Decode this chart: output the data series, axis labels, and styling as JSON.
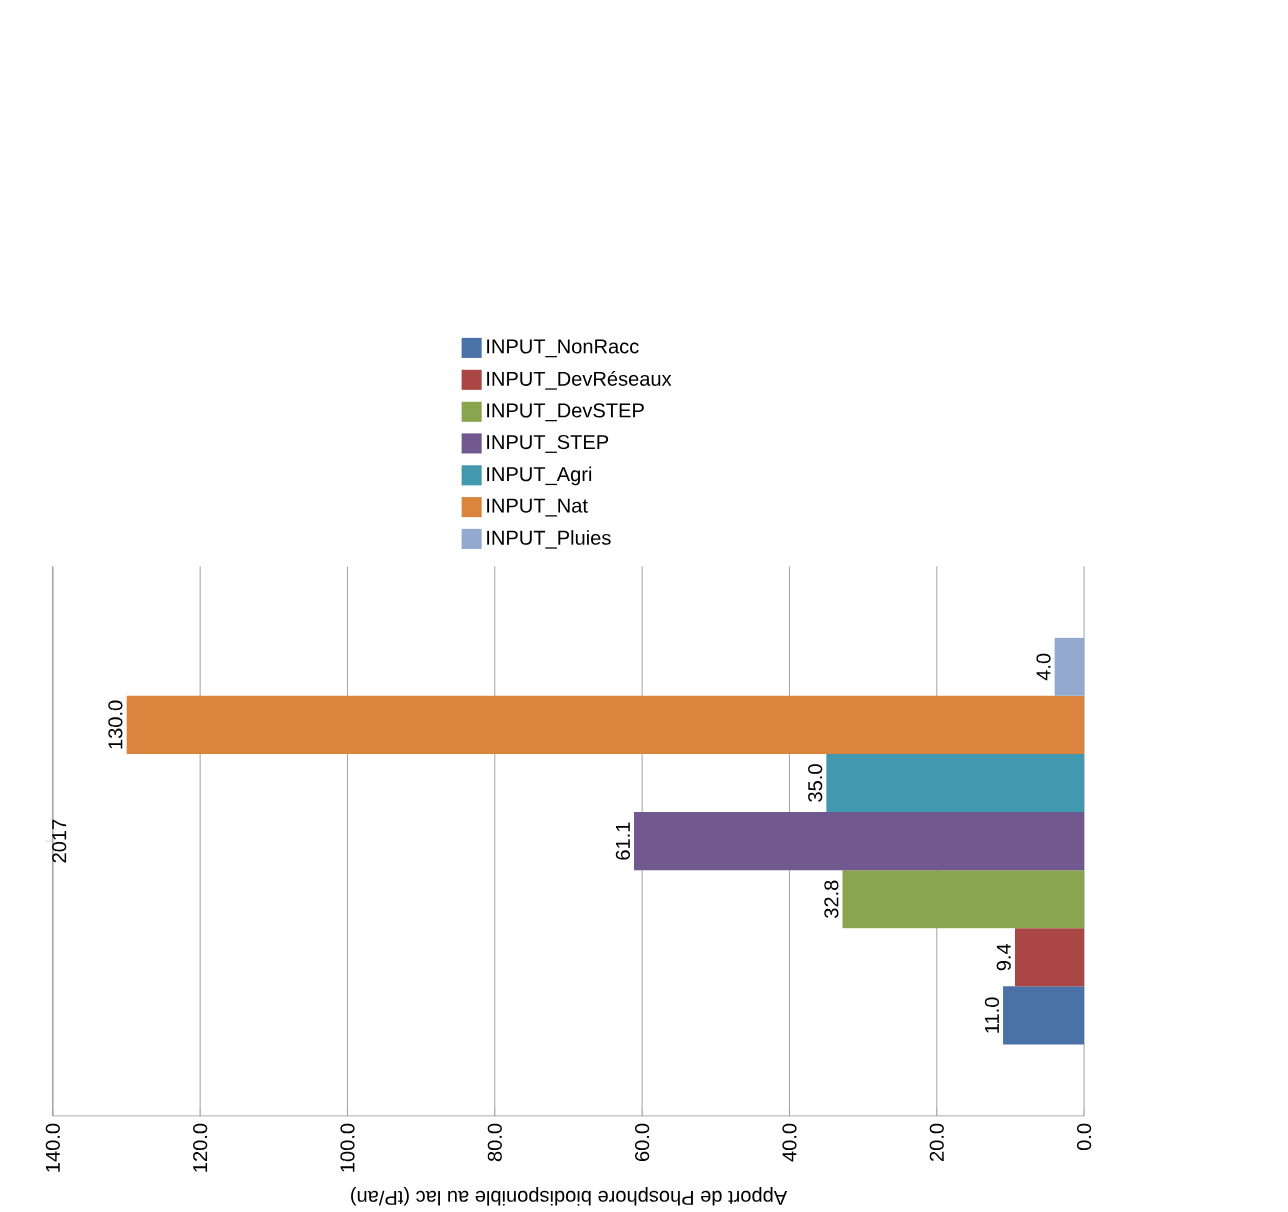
{
  "chart_data": {
    "type": "bar",
    "orientation": "horizontal",
    "xlabel": "Apport de Phosphore biodisponible au lac (tP/an)",
    "categories": [
      "2017"
    ],
    "series": [
      {
        "name": "INPUT_NonRacc",
        "color": "#4a72a6",
        "values": [
          11.0
        ],
        "value_labels": [
          "11.0"
        ]
      },
      {
        "name": "INPUT_DevRéseaux",
        "color": "#aa4643",
        "values": [
          9.4
        ],
        "value_labels": [
          "9.4"
        ]
      },
      {
        "name": "INPUT_DevSTEP",
        "color": "#89a54e",
        "values": [
          32.8
        ],
        "value_labels": [
          "32.8"
        ]
      },
      {
        "name": "INPUT_STEP",
        "color": "#71588f",
        "values": [
          61.1
        ],
        "value_labels": [
          "61.1"
        ]
      },
      {
        "name": "INPUT_Agri",
        "color": "#4198af",
        "values": [
          35.0
        ],
        "value_labels": [
          "35.0"
        ]
      },
      {
        "name": "INPUT_Nat",
        "color": "#db843d",
        "values": [
          130.0
        ],
        "value_labels": [
          "130.0"
        ]
      },
      {
        "name": "INPUT_Pluies",
        "color": "#93a9cf",
        "values": [
          4.0
        ],
        "value_labels": [
          "4.0"
        ]
      }
    ],
    "xlim": [
      140,
      0
    ],
    "xticks": [
      {
        "value": 0,
        "label": "0.0"
      },
      {
        "value": 20,
        "label": "20.0"
      },
      {
        "value": 40,
        "label": "40.0"
      },
      {
        "value": 60,
        "label": "60.0"
      },
      {
        "value": 80,
        "label": "80.0"
      },
      {
        "value": 100,
        "label": "100.0"
      },
      {
        "value": 120,
        "label": "120.0"
      },
      {
        "value": 140,
        "label": "140.0"
      }
    ],
    "grid": "x",
    "legend": "top"
  }
}
